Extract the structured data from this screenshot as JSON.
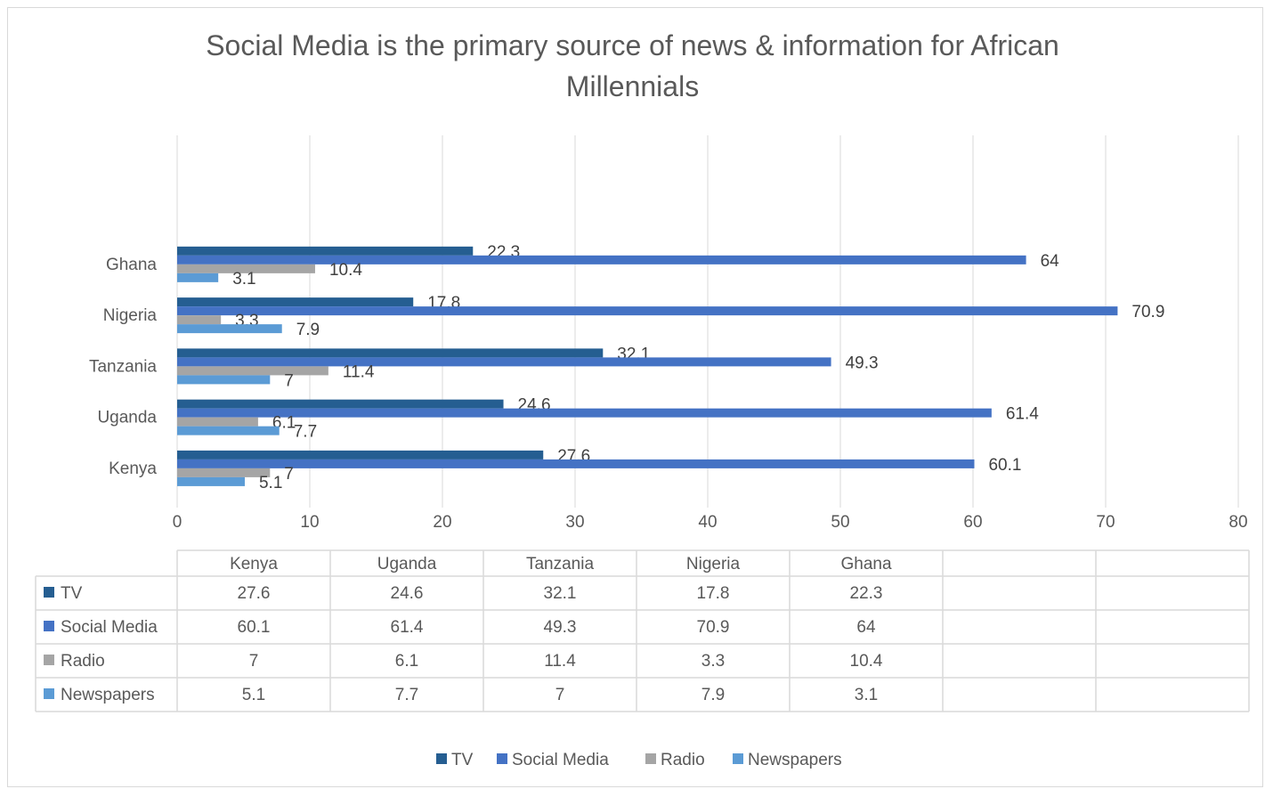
{
  "chart_data": {
    "type": "bar",
    "orientation": "horizontal",
    "title": "Social Media is the primary source of news & information for African Millennials",
    "title_lines": [
      "Social Media is the primary source of news & information for African",
      "Millennials"
    ],
    "categories": [
      "Kenya",
      "Uganda",
      "Tanzania",
      "Nigeria",
      "Ghana"
    ],
    "series": [
      {
        "name": "TV",
        "values": [
          27.6,
          24.6,
          32.1,
          17.8,
          22.3
        ],
        "color": "#255e91"
      },
      {
        "name": "Social Media",
        "values": [
          60.1,
          61.4,
          49.3,
          70.9,
          64
        ],
        "color": "#4472c4"
      },
      {
        "name": "Radio",
        "values": [
          7,
          6.1,
          11.4,
          3.3,
          10.4
        ],
        "color": "#a5a5a5"
      },
      {
        "name": "Newspapers",
        "values": [
          5.1,
          7.7,
          7,
          7.9,
          3.1
        ],
        "color": "#5b9bd5"
      }
    ],
    "xlim": [
      0,
      80
    ],
    "xticks": [
      0,
      10,
      20,
      30,
      40,
      50,
      60,
      70,
      80
    ],
    "grid": true,
    "legend": "bottom",
    "data_table": true
  }
}
